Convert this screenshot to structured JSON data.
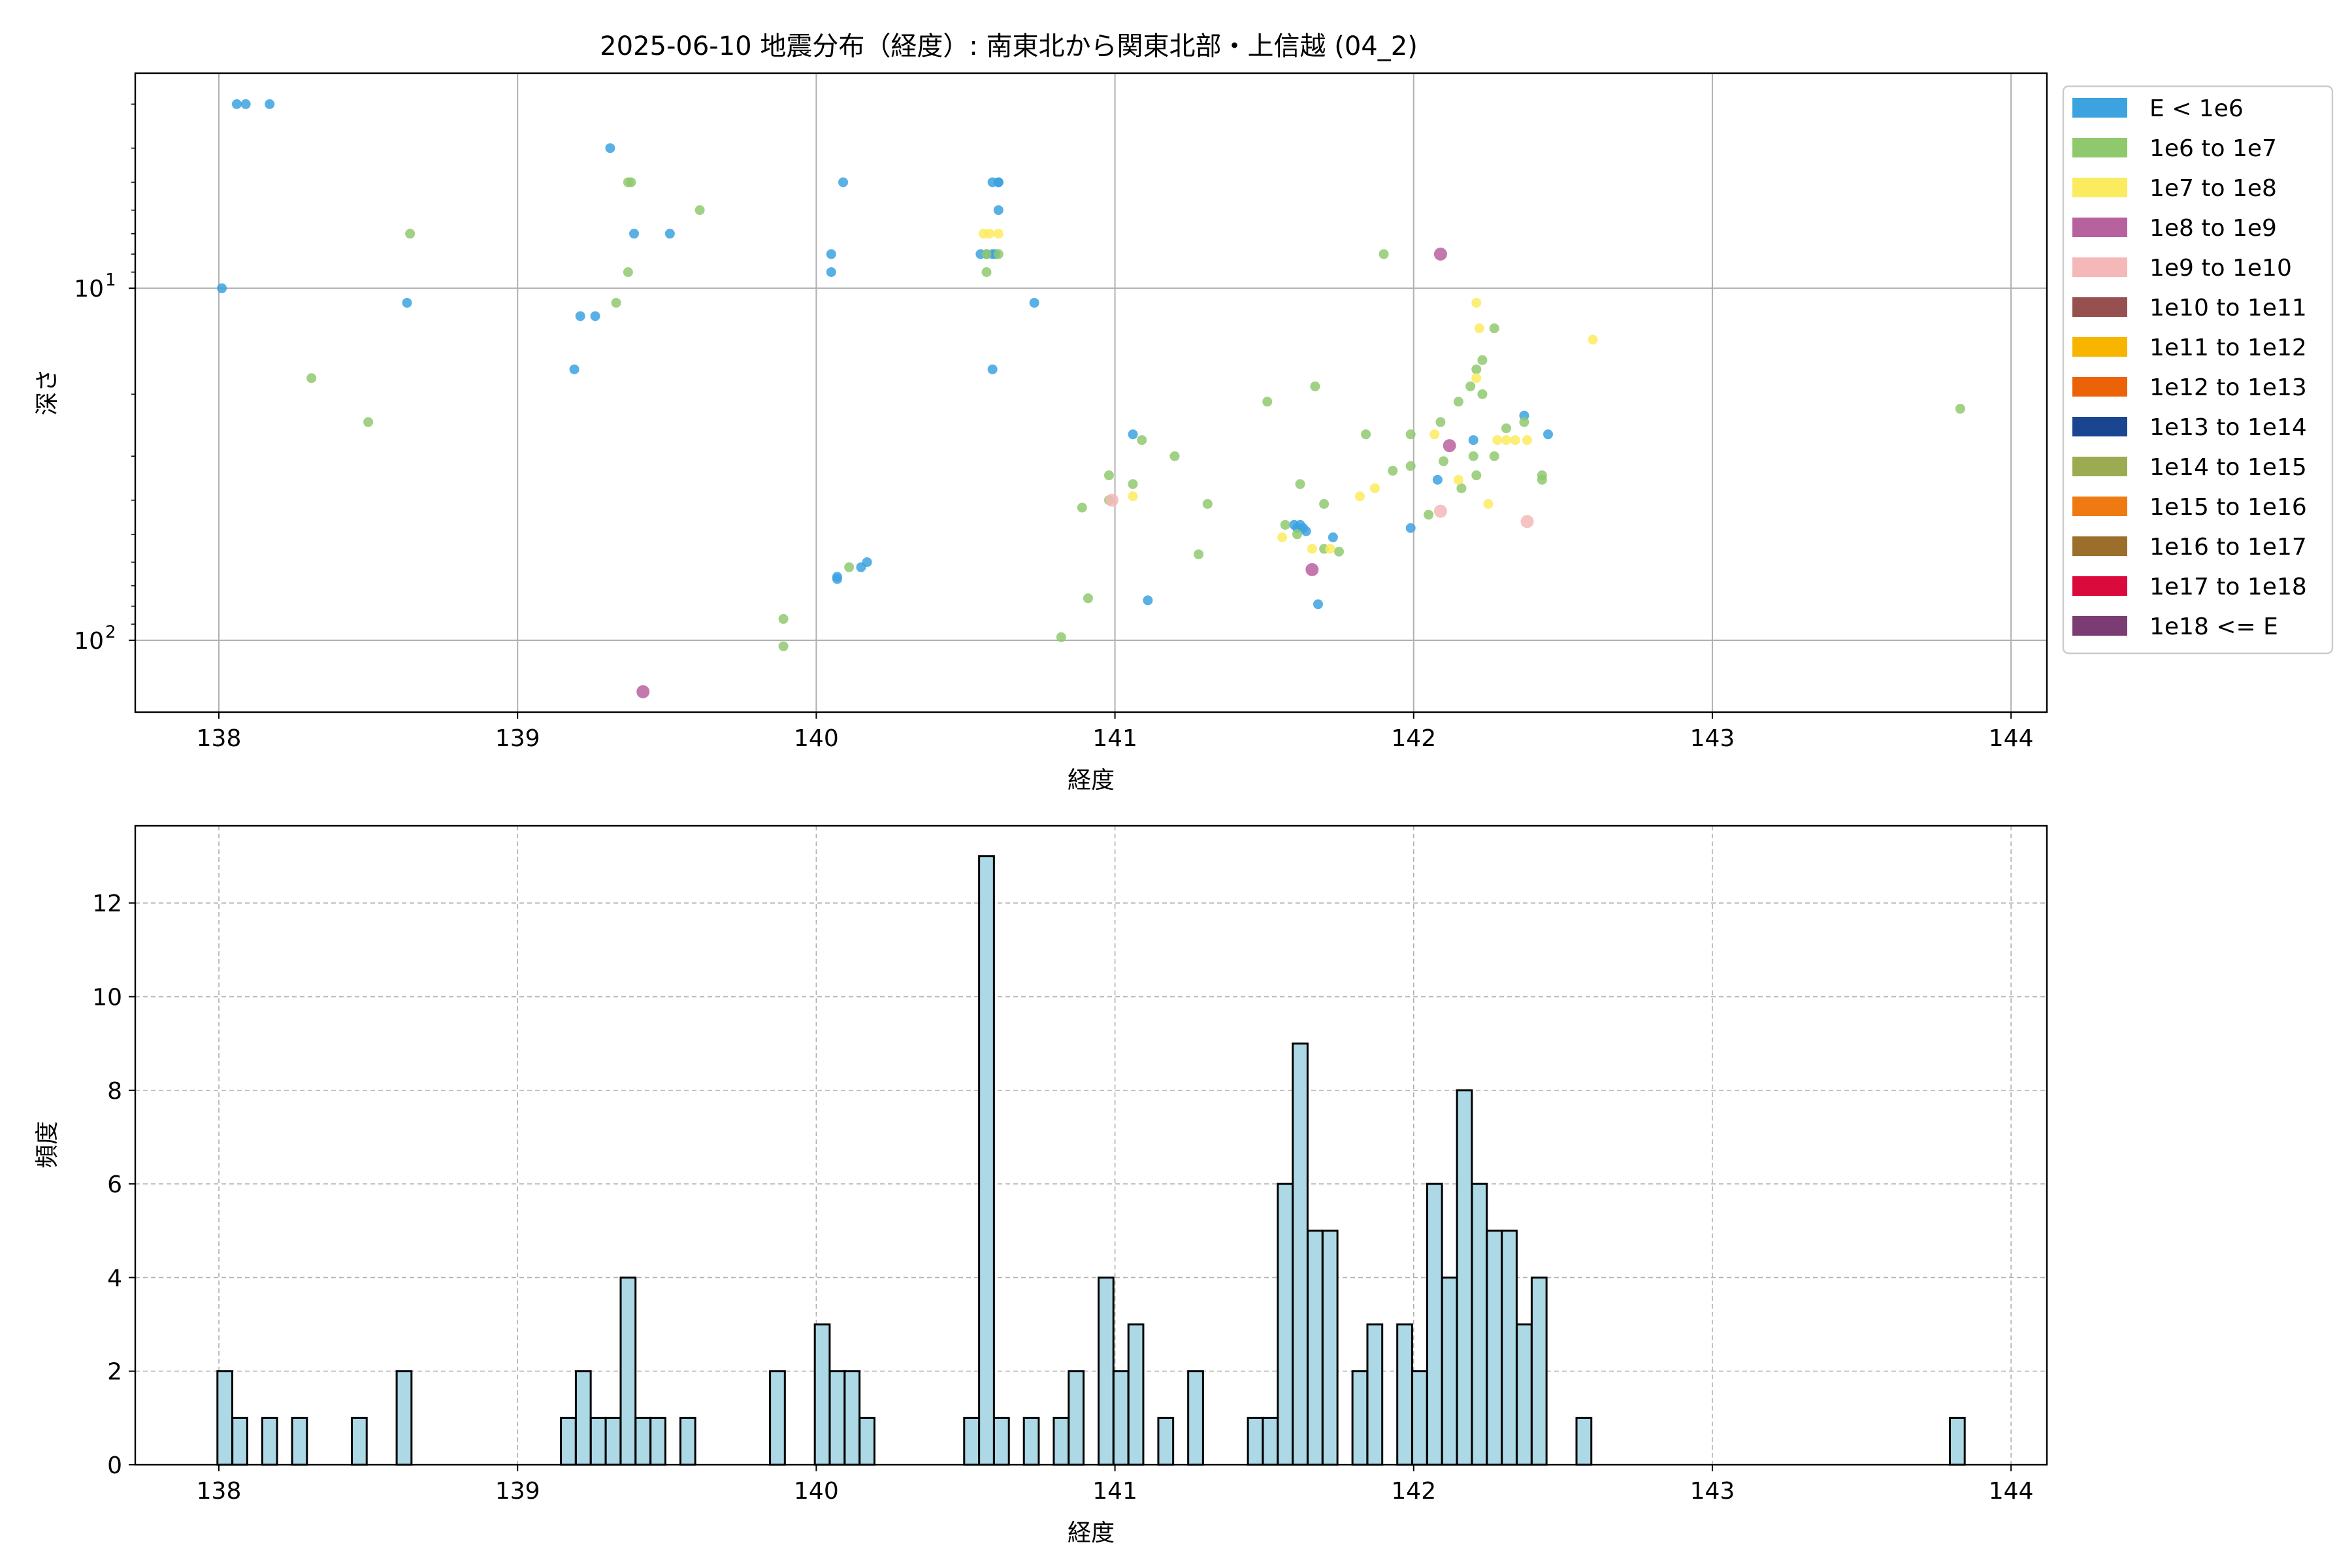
{
  "title": "2025-06-10 地震分布（経度）: 南東北から関東北部・上信越 (04_2)",
  "colors": {
    "E<1e6": "#3ca2e0",
    "1e6-1e7": "#8fc96e",
    "1e7-1e8": "#fbeb5e",
    "1e8-1e9": "#b8619f",
    "1e9-1e10": "#f4b8b8",
    "1e10-1e11": "#975050",
    "1e11-1e12": "#f7b500",
    "1e12-1e13": "#ec6209",
    "1e13-1e14": "#1a4591",
    "1e14-1e15": "#9bab52",
    "1e15-1e16": "#ef7a12",
    "1e16-1e17": "#9c6e2c",
    "1e17-1e18": "#db0a3d",
    "1e18<=E": "#7a3c72",
    "hist_fill": "#add8e6",
    "hist_edge": "#000000",
    "grid": "#b0b0b0"
  },
  "chart_data": [
    {
      "type": "scatter",
      "xlabel": "経度",
      "ylabel": "深さ",
      "x_range": [
        137.72,
        144.12
      ],
      "y_range": [
        160,
        2.45
      ],
      "y_scale": "log",
      "y_inverted": true,
      "x_ticks": [
        138,
        139,
        140,
        141,
        142,
        143,
        144
      ],
      "y_ticks": [
        {
          "value": 10,
          "base": "10",
          "exp": "1"
        },
        {
          "value": 100,
          "base": "10",
          "exp": "2"
        }
      ],
      "grid": true,
      "legend_position": "outside-right",
      "legend": [
        {
          "label": "E < 1e6",
          "key": "E<1e6"
        },
        {
          "label": "1e6 to 1e7",
          "key": "1e6-1e7"
        },
        {
          "label": "1e7 to 1e8",
          "key": "1e7-1e8"
        },
        {
          "label": "1e8 to 1e9",
          "key": "1e8-1e9"
        },
        {
          "label": "1e9 to 1e10",
          "key": "1e9-1e10"
        },
        {
          "label": "1e10 to 1e11",
          "key": "1e10-1e11"
        },
        {
          "label": "1e11 to 1e12",
          "key": "1e11-1e12"
        },
        {
          "label": "1e12 to 1e13",
          "key": "1e12-1e13"
        },
        {
          "label": "1e13 to 1e14",
          "key": "1e13-1e14"
        },
        {
          "label": "1e14 to 1e15",
          "key": "1e14-1e15"
        },
        {
          "label": "1e15 to 1e16",
          "key": "1e15-1e16"
        },
        {
          "label": "1e16 to 1e17",
          "key": "1e16-1e17"
        },
        {
          "label": "1e17 to 1e18",
          "key": "1e17-1e18"
        },
        {
          "label": "1e18 <= E",
          "key": "1e18<=E"
        }
      ],
      "series": [
        {
          "class": "E<1e6",
          "points": [
            [
              138.01,
              10
            ],
            [
              138.06,
              3
            ],
            [
              138.09,
              3
            ],
            [
              138.17,
              3
            ],
            [
              138.63,
              11
            ],
            [
              139.19,
              17
            ],
            [
              139.21,
              12
            ],
            [
              139.26,
              12
            ],
            [
              139.31,
              4
            ],
            [
              139.39,
              7
            ],
            [
              139.51,
              7
            ],
            [
              140.05,
              8
            ],
            [
              140.05,
              9
            ],
            [
              140.07,
              66
            ],
            [
              140.07,
              67
            ],
            [
              140.09,
              5
            ],
            [
              140.15,
              62
            ],
            [
              140.17,
              60
            ],
            [
              140.55,
              8
            ],
            [
              140.57,
              8
            ],
            [
              140.59,
              5
            ],
            [
              140.59,
              8
            ],
            [
              140.6,
              8
            ],
            [
              140.61,
              5
            ],
            [
              140.61,
              5
            ],
            [
              140.61,
              6
            ],
            [
              140.59,
              17
            ],
            [
              140.73,
              11
            ],
            [
              141.06,
              26
            ],
            [
              141.11,
              77
            ],
            [
              141.6,
              47
            ],
            [
              141.61,
              48
            ],
            [
              141.62,
              47
            ],
            [
              141.63,
              48
            ],
            [
              141.64,
              49
            ],
            [
              141.68,
              79
            ],
            [
              141.73,
              51
            ],
            [
              141.99,
              48
            ],
            [
              142.08,
              35
            ],
            [
              142.2,
              27
            ],
            [
              142.37,
              23
            ],
            [
              142.45,
              26
            ]
          ]
        },
        {
          "class": "1e6-1e7",
          "points": [
            [
              138.31,
              18
            ],
            [
              138.5,
              24
            ],
            [
              138.64,
              7
            ],
            [
              139.33,
              11
            ],
            [
              139.37,
              9
            ],
            [
              139.37,
              5
            ],
            [
              139.38,
              5
            ],
            [
              139.61,
              6
            ],
            [
              139.89,
              87
            ],
            [
              139.89,
              104
            ],
            [
              140.11,
              62
            ],
            [
              140.57,
              9
            ],
            [
              140.57,
              8
            ],
            [
              140.61,
              8
            ],
            [
              140.82,
              98
            ],
            [
              140.89,
              42
            ],
            [
              140.91,
              76
            ],
            [
              140.98,
              40
            ],
            [
              140.98,
              34
            ],
            [
              141.06,
              36
            ],
            [
              141.09,
              27
            ],
            [
              141.2,
              30
            ],
            [
              141.28,
              57
            ],
            [
              141.31,
              41
            ],
            [
              141.51,
              21
            ],
            [
              141.57,
              47
            ],
            [
              141.62,
              36
            ],
            [
              141.61,
              50
            ],
            [
              141.67,
              19
            ],
            [
              141.7,
              41
            ],
            [
              141.7,
              55
            ],
            [
              141.75,
              56
            ],
            [
              141.84,
              26
            ],
            [
              141.9,
              8
            ],
            [
              141.93,
              33
            ],
            [
              141.99,
              26
            ],
            [
              141.99,
              32
            ],
            [
              142.05,
              44
            ],
            [
              142.09,
              24
            ],
            [
              142.1,
              31
            ],
            [
              142.15,
              21
            ],
            [
              142.16,
              37
            ],
            [
              142.19,
              19
            ],
            [
              142.2,
              30
            ],
            [
              142.21,
              34
            ],
            [
              142.21,
              17
            ],
            [
              142.23,
              20
            ],
            [
              142.23,
              16
            ],
            [
              142.27,
              13
            ],
            [
              142.27,
              30
            ],
            [
              142.31,
              25
            ],
            [
              142.37,
              24
            ],
            [
              142.43,
              35
            ],
            [
              142.43,
              34
            ],
            [
              143.83,
              22
            ]
          ]
        },
        {
          "class": "1e7-1e8",
          "points": [
            [
              140.56,
              7
            ],
            [
              140.58,
              7
            ],
            [
              140.61,
              7
            ],
            [
              141.06,
              39
            ],
            [
              141.56,
              51
            ],
            [
              141.66,
              55
            ],
            [
              141.72,
              55
            ],
            [
              141.82,
              39
            ],
            [
              141.87,
              37
            ],
            [
              142.07,
              26
            ],
            [
              142.15,
              35
            ],
            [
              142.21,
              18
            ],
            [
              142.21,
              11
            ],
            [
              142.22,
              13
            ],
            [
              142.25,
              41
            ],
            [
              142.28,
              27
            ],
            [
              142.31,
              27
            ],
            [
              142.34,
              27
            ],
            [
              142.38,
              27
            ],
            [
              142.6,
              14
            ]
          ]
        },
        {
          "class": "1e8-1e9",
          "points": [
            [
              139.42,
              140
            ],
            [
              141.66,
              63
            ],
            [
              142.09,
              8
            ],
            [
              142.12,
              28
            ]
          ]
        },
        {
          "class": "1e9-1e10",
          "points": [
            [
              140.99,
              40
            ],
            [
              142.09,
              43
            ],
            [
              142.38,
              46
            ]
          ]
        }
      ]
    },
    {
      "type": "bar",
      "xlabel": "経度",
      "ylabel": "頻度",
      "x_range": [
        137.72,
        144.12
      ],
      "y_range": [
        0,
        13.65
      ],
      "x_ticks": [
        138,
        139,
        140,
        141,
        142,
        143,
        144
      ],
      "y_ticks": [
        0,
        2,
        4,
        6,
        8,
        10,
        12
      ],
      "grid": "dashed",
      "bin_width": 0.0497,
      "bins": [
        [
          138.02,
          2
        ],
        [
          138.07,
          1
        ],
        [
          138.17,
          1
        ],
        [
          138.27,
          1
        ],
        [
          138.47,
          1
        ],
        [
          138.62,
          2
        ],
        [
          139.17,
          1
        ],
        [
          139.22,
          2
        ],
        [
          139.27,
          1
        ],
        [
          139.32,
          1
        ],
        [
          139.37,
          4
        ],
        [
          139.42,
          1
        ],
        [
          139.47,
          1
        ],
        [
          139.57,
          1
        ],
        [
          139.87,
          2
        ],
        [
          140.02,
          3
        ],
        [
          140.07,
          2
        ],
        [
          140.12,
          2
        ],
        [
          140.17,
          1
        ],
        [
          140.52,
          1
        ],
        [
          140.57,
          13
        ],
        [
          140.62,
          1
        ],
        [
          140.72,
          1
        ],
        [
          140.82,
          1
        ],
        [
          140.87,
          2
        ],
        [
          140.97,
          4
        ],
        [
          141.02,
          2
        ],
        [
          141.07,
          3
        ],
        [
          141.17,
          1
        ],
        [
          141.27,
          2
        ],
        [
          141.47,
          1
        ],
        [
          141.52,
          1
        ],
        [
          141.57,
          6
        ],
        [
          141.62,
          9
        ],
        [
          141.67,
          5
        ],
        [
          141.72,
          5
        ],
        [
          141.82,
          2
        ],
        [
          141.87,
          3
        ],
        [
          141.97,
          3
        ],
        [
          142.02,
          2
        ],
        [
          142.07,
          6
        ],
        [
          142.12,
          4
        ],
        [
          142.17,
          8
        ],
        [
          142.22,
          6
        ],
        [
          142.27,
          5
        ],
        [
          142.32,
          5
        ],
        [
          142.37,
          3
        ],
        [
          142.42,
          4
        ],
        [
          142.57,
          1
        ],
        [
          143.82,
          1
        ]
      ]
    }
  ]
}
